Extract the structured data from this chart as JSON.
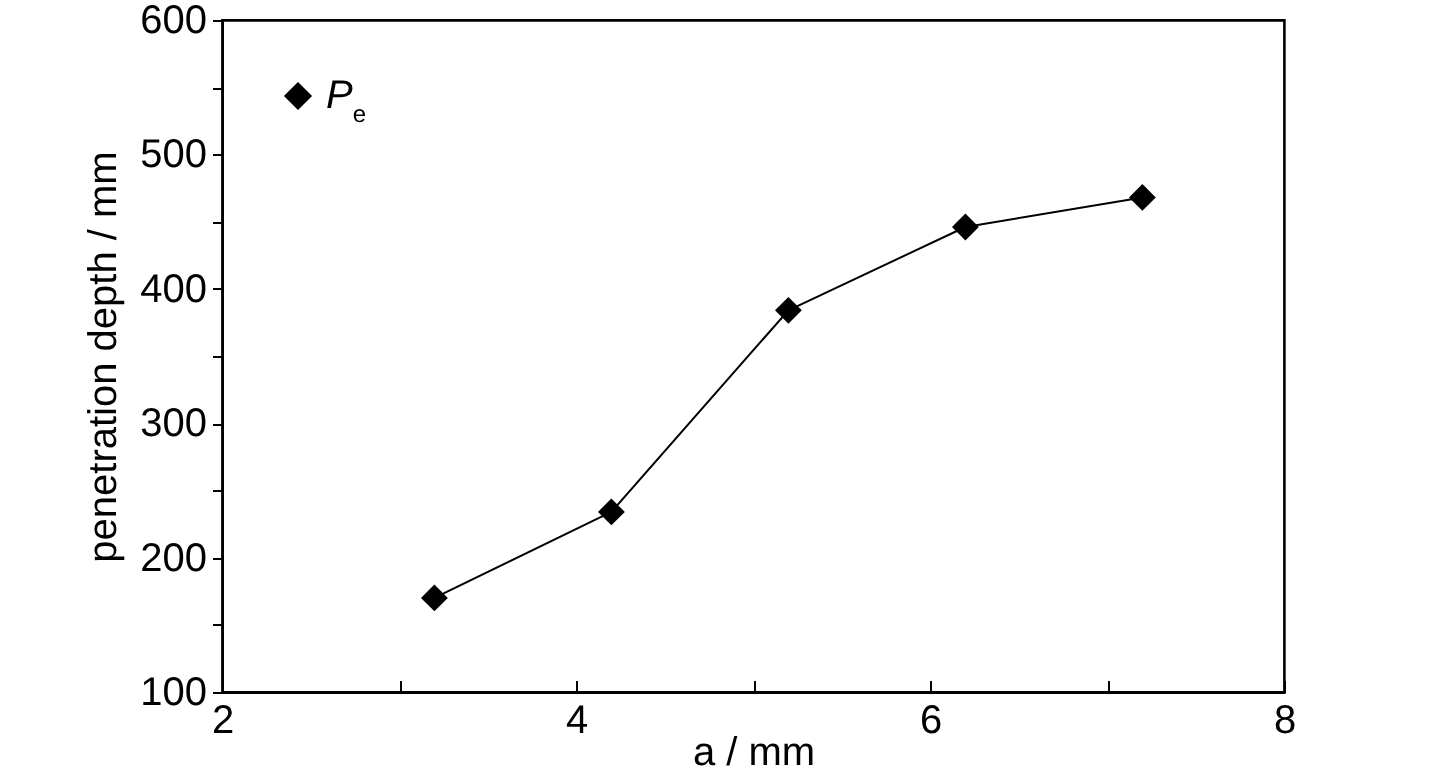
{
  "chart_data": {
    "type": "line",
    "xlabel": "a / mm",
    "ylabel": "penetration depth / mm",
    "x": [
      3.2,
      4.2,
      5.2,
      6.2,
      7.2
    ],
    "series": [
      {
        "name": "P$_{e}$",
        "color": "#000000",
        "values": [
          170,
          234,
          384,
          446,
          468
        ]
      }
    ],
    "xlim": [
      2,
      8
    ],
    "xticks": [
      2,
      {
        "value": 3,
        "label": null
      },
      4,
      {
        "value": 5,
        "label": null
      },
      6,
      {
        "value": 7,
        "label": null
      },
      8
    ],
    "ylim": [
      100,
      600
    ],
    "yticks": [
      100,
      {
        "value": 150,
        "label": null
      },
      200,
      {
        "value": 250,
        "label": null
      },
      300,
      {
        "value": 350,
        "label": null
      },
      400,
      {
        "value": 450,
        "label": null
      },
      500,
      {
        "value": 550,
        "label": null
      },
      600
    ],
    "marker": "diamond",
    "line_style": "solid",
    "legend": "top left",
    "grid": false
  }
}
